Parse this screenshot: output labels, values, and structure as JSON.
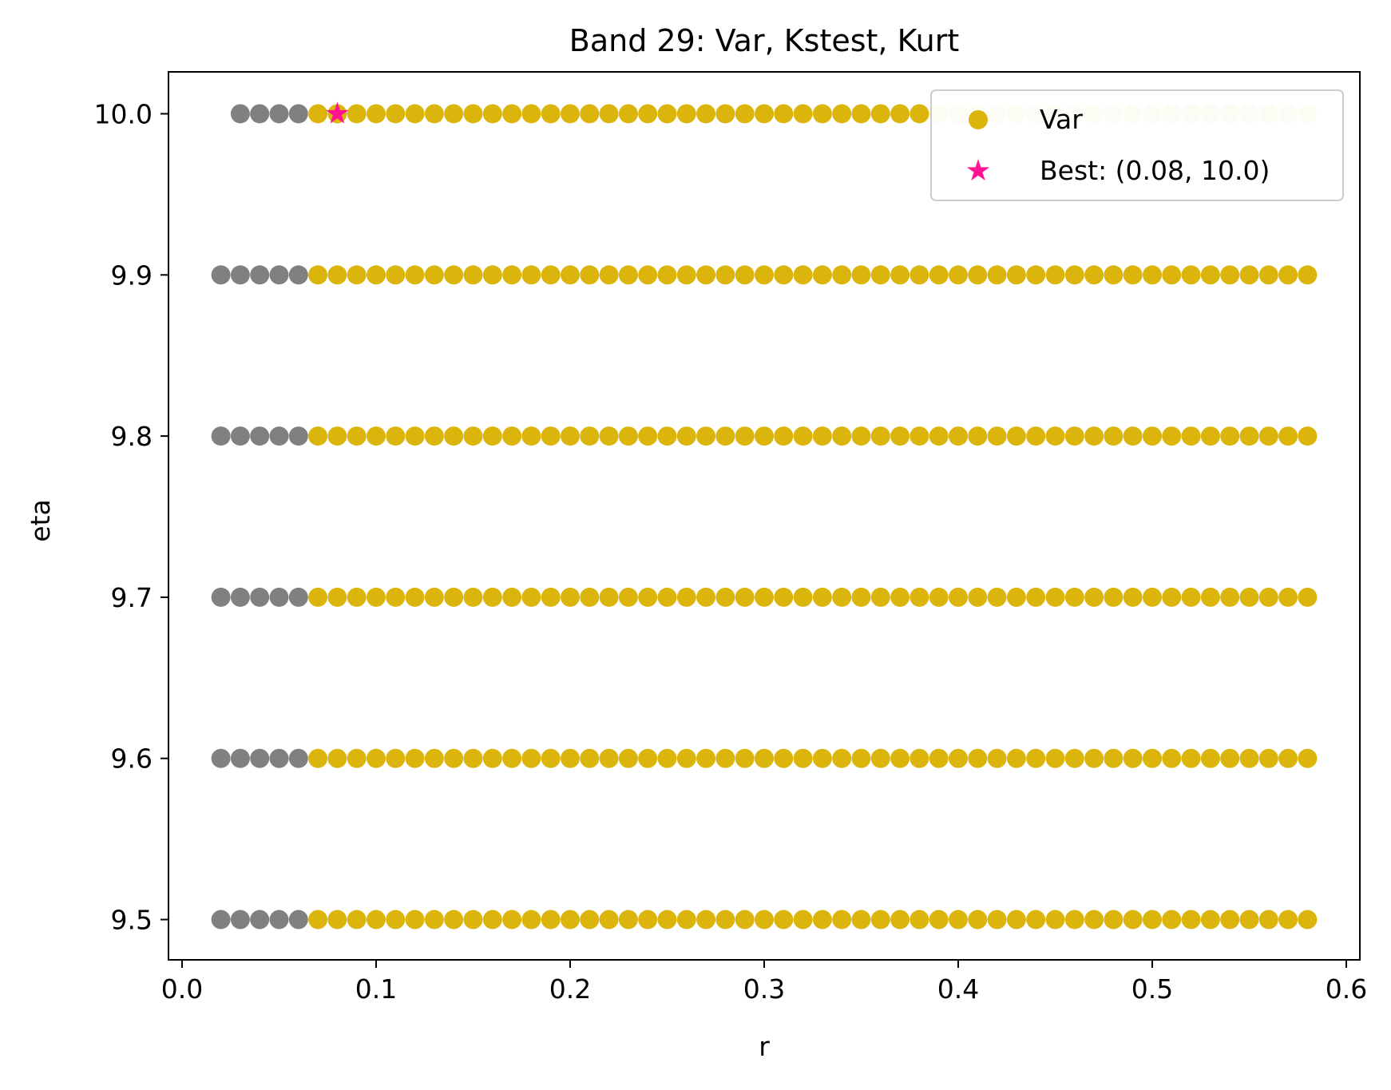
{
  "chart_data": {
    "type": "scatter",
    "title": "Band 29: Var, Kstest, Kurt",
    "xlabel": "r",
    "ylabel": "eta",
    "xlim": [
      -0.007,
      0.607
    ],
    "ylim": [
      9.475,
      10.026
    ],
    "x_ticks": [
      "0.0",
      "0.1",
      "0.2",
      "0.3",
      "0.4",
      "0.5",
      "0.6"
    ],
    "y_ticks": [
      "9.5",
      "9.6",
      "9.7",
      "9.8",
      "9.9",
      "10.0"
    ],
    "grid": false,
    "legend_position": "upper-right",
    "eta_rows": [
      9.5,
      9.6,
      9.7,
      9.8,
      9.9,
      10.0
    ],
    "series": [
      {
        "name": "",
        "color": "#808080",
        "r_start": 0.02,
        "r_end": 0.06,
        "r_step": 0.01,
        "start_overrides": {
          "10.0": 0.03
        }
      },
      {
        "name": "Var",
        "color": "#dbb40c",
        "r_start": 0.07,
        "r_end": 0.58,
        "r_step": 0.01,
        "faded_color": "#f6edc8",
        "faded_from_r": 0.39,
        "faded_row": 10.0
      }
    ],
    "best": {
      "label": "Best: (0.08, 10.0)",
      "r": 0.08,
      "eta": 10.0,
      "color": "#ff1493"
    },
    "legend": [
      {
        "label": "Var",
        "marker": "circle",
        "color": "#dbb40c"
      },
      {
        "label": "Best: (0.08, 10.0)",
        "marker": "star",
        "color": "#ff1493"
      }
    ]
  }
}
